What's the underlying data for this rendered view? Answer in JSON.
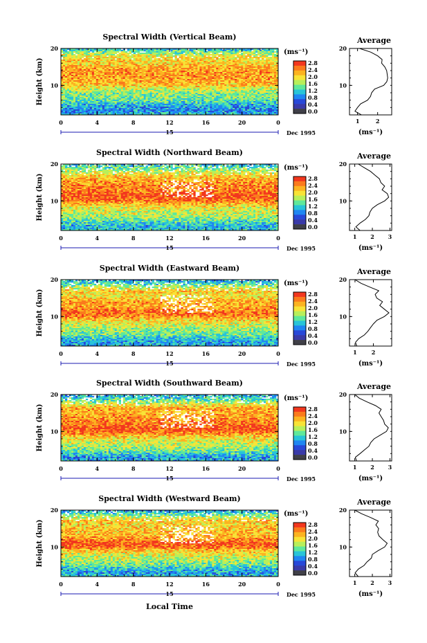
{
  "figure": {
    "xlabel": "Local Time",
    "date_label": "Dec 1995",
    "day_label": "15",
    "avg_title": "Average",
    "cb_unit": "(ms⁻¹)",
    "avg_xlabel": "(ms⁻¹)"
  },
  "colorbar": {
    "ticks": [
      "2.8",
      "2.4",
      "2.0",
      "1.6",
      "1.2",
      "0.8",
      "0.4",
      "0.0"
    ],
    "colors": [
      "#f2371e",
      "#fb7a1c",
      "#fcb320",
      "#f8e336",
      "#b8ef5a",
      "#5fe89a",
      "#28c4d8",
      "#1f86f2",
      "#2848d8",
      "#3a3aa8",
      "#404048"
    ]
  },
  "chart_data": [
    {
      "type": "heatmap",
      "title": "Spectral Width (Vertical Beam)",
      "xlabel": "Local Time",
      "ylabel": "Height (km)",
      "xlim": [
        0,
        24
      ],
      "ylim": [
        2,
        20
      ],
      "xticks": [
        "0",
        "4",
        "8",
        "12",
        "16",
        "20",
        "0"
      ],
      "yticks": [
        "20",
        "10"
      ],
      "profile": [
        [
          2,
          1.2
        ],
        [
          3,
          0.9
        ],
        [
          4,
          1.0
        ],
        [
          5,
          1.2
        ],
        [
          6,
          1.5
        ],
        [
          7,
          1.6
        ],
        [
          8,
          1.7
        ],
        [
          9,
          1.9
        ],
        [
          10,
          2.3
        ],
        [
          11,
          2.4
        ],
        [
          12,
          2.5
        ],
        [
          13,
          2.5
        ],
        [
          14,
          2.45
        ],
        [
          15,
          2.4
        ],
        [
          16,
          2.2
        ],
        [
          17,
          2.2
        ],
        [
          18,
          2.0
        ],
        [
          19,
          1.6
        ],
        [
          20,
          1.1
        ]
      ],
      "profile_xlim": [
        0.6,
        2.7
      ],
      "profile_xticks": [
        {
          "v": 1,
          "label": "1"
        },
        {
          "v": 2,
          "label": "2"
        }
      ],
      "profile_yticks": [
        "20",
        "10"
      ]
    },
    {
      "type": "heatmap",
      "title": "Spectral Width (Northward Beam)",
      "xlabel": "Local Time",
      "ylabel": "Height (km)",
      "xlim": [
        0,
        24
      ],
      "ylim": [
        2,
        20
      ],
      "xticks": [
        "0",
        "4",
        "8",
        "12",
        "16",
        "20",
        "0"
      ],
      "yticks": [
        "20",
        "10"
      ],
      "profile": [
        [
          2,
          1.3
        ],
        [
          3,
          1.1
        ],
        [
          4,
          1.3
        ],
        [
          5,
          1.6
        ],
        [
          6,
          1.8
        ],
        [
          7,
          1.9
        ],
        [
          8,
          2.0
        ],
        [
          9,
          2.3
        ],
        [
          10,
          2.7
        ],
        [
          11,
          2.9
        ],
        [
          12,
          2.85
        ],
        [
          13,
          2.6
        ],
        [
          14,
          2.7
        ],
        [
          15,
          2.5
        ],
        [
          16,
          2.4
        ],
        [
          17,
          2.1
        ],
        [
          18,
          1.9
        ],
        [
          19,
          1.5
        ],
        [
          20,
          1.2
        ]
      ],
      "profile_xlim": [
        0.7,
        3.1
      ],
      "profile_xticks": [
        {
          "v": 1,
          "label": "1"
        },
        {
          "v": 2,
          "label": "2"
        },
        {
          "v": 3,
          "label": "3"
        }
      ],
      "profile_yticks": [
        "20",
        "10"
      ]
    },
    {
      "type": "heatmap",
      "title": "Spectral Width (Eastward Beam)",
      "xlabel": "Local Time",
      "ylabel": "Height (km)",
      "xlim": [
        0,
        24
      ],
      "ylim": [
        2,
        20
      ],
      "xticks": [
        "0",
        "4",
        "8",
        "12",
        "16",
        "20",
        "0"
      ],
      "yticks": [
        "20",
        "10"
      ],
      "profile": [
        [
          2,
          1.1
        ],
        [
          3,
          1.0
        ],
        [
          4,
          1.2
        ],
        [
          5,
          1.5
        ],
        [
          6,
          1.7
        ],
        [
          7,
          1.8
        ],
        [
          8,
          2.0
        ],
        [
          9,
          2.2
        ],
        [
          10,
          2.6
        ],
        [
          11,
          2.8
        ],
        [
          12,
          2.6
        ],
        [
          13,
          2.4
        ],
        [
          14,
          2.5
        ],
        [
          15,
          2.2
        ],
        [
          16,
          2.1
        ],
        [
          17,
          2.3
        ],
        [
          18,
          1.8
        ],
        [
          19,
          1.3
        ],
        [
          20,
          1.0
        ]
      ],
      "profile_xlim": [
        0.7,
        3.0
      ],
      "profile_xticks": [
        {
          "v": 1,
          "label": "1"
        },
        {
          "v": 2,
          "label": "2"
        }
      ],
      "profile_yticks": [
        "20",
        "10"
      ]
    },
    {
      "type": "heatmap",
      "title": "Spectral Width (Southward Beam)",
      "xlabel": "Local Time",
      "ylabel": "Height (km)",
      "xlim": [
        0,
        24
      ],
      "ylim": [
        2,
        20
      ],
      "xticks": [
        "0",
        "4",
        "8",
        "12",
        "16",
        "20",
        "0"
      ],
      "yticks": [
        "20",
        "10"
      ],
      "profile": [
        [
          2,
          1.1
        ],
        [
          3,
          1.0
        ],
        [
          4,
          1.3
        ],
        [
          5,
          1.6
        ],
        [
          6,
          1.8
        ],
        [
          7,
          1.9
        ],
        [
          8,
          2.1
        ],
        [
          9,
          2.4
        ],
        [
          10,
          2.8
        ],
        [
          11,
          2.9
        ],
        [
          12,
          2.7
        ],
        [
          13,
          2.6
        ],
        [
          14,
          2.5
        ],
        [
          15,
          2.4
        ],
        [
          16,
          2.5
        ],
        [
          17,
          2.2
        ],
        [
          18,
          1.7
        ],
        [
          19,
          1.3
        ],
        [
          20,
          1.0
        ]
      ],
      "profile_xlim": [
        0.7,
        3.1
      ],
      "profile_xticks": [
        {
          "v": 1,
          "label": "1"
        },
        {
          "v": 2,
          "label": "2"
        },
        {
          "v": 3,
          "label": "3"
        }
      ],
      "profile_yticks": [
        "20",
        "10"
      ]
    },
    {
      "type": "heatmap",
      "title": "Spectral Width (Westward Beam)",
      "xlabel": "Local Time",
      "ylabel": "Height (km)",
      "xlim": [
        0,
        24
      ],
      "ylim": [
        2,
        20
      ],
      "xticks": [
        "0",
        "4",
        "8",
        "12",
        "16",
        "20",
        "0"
      ],
      "yticks": [
        "20",
        "10"
      ],
      "profile": [
        [
          2,
          1.2
        ],
        [
          3,
          1.0
        ],
        [
          4,
          1.2
        ],
        [
          5,
          1.5
        ],
        [
          6,
          1.7
        ],
        [
          7,
          1.9
        ],
        [
          8,
          2.0
        ],
        [
          9,
          2.3
        ],
        [
          10,
          2.7
        ],
        [
          11,
          2.9
        ],
        [
          12,
          2.6
        ],
        [
          13,
          2.4
        ],
        [
          14,
          2.3
        ],
        [
          15,
          2.3
        ],
        [
          16,
          2.2
        ],
        [
          17,
          2.3
        ],
        [
          18,
          1.9
        ],
        [
          19,
          1.4
        ],
        [
          20,
          1.0
        ]
      ],
      "profile_xlim": [
        0.7,
        3.1
      ],
      "profile_xticks": [
        {
          "v": 1,
          "label": "1"
        },
        {
          "v": 2,
          "label": "2"
        },
        {
          "v": 3,
          "label": "3"
        }
      ],
      "profile_yticks": [
        "20",
        "10"
      ]
    }
  ]
}
